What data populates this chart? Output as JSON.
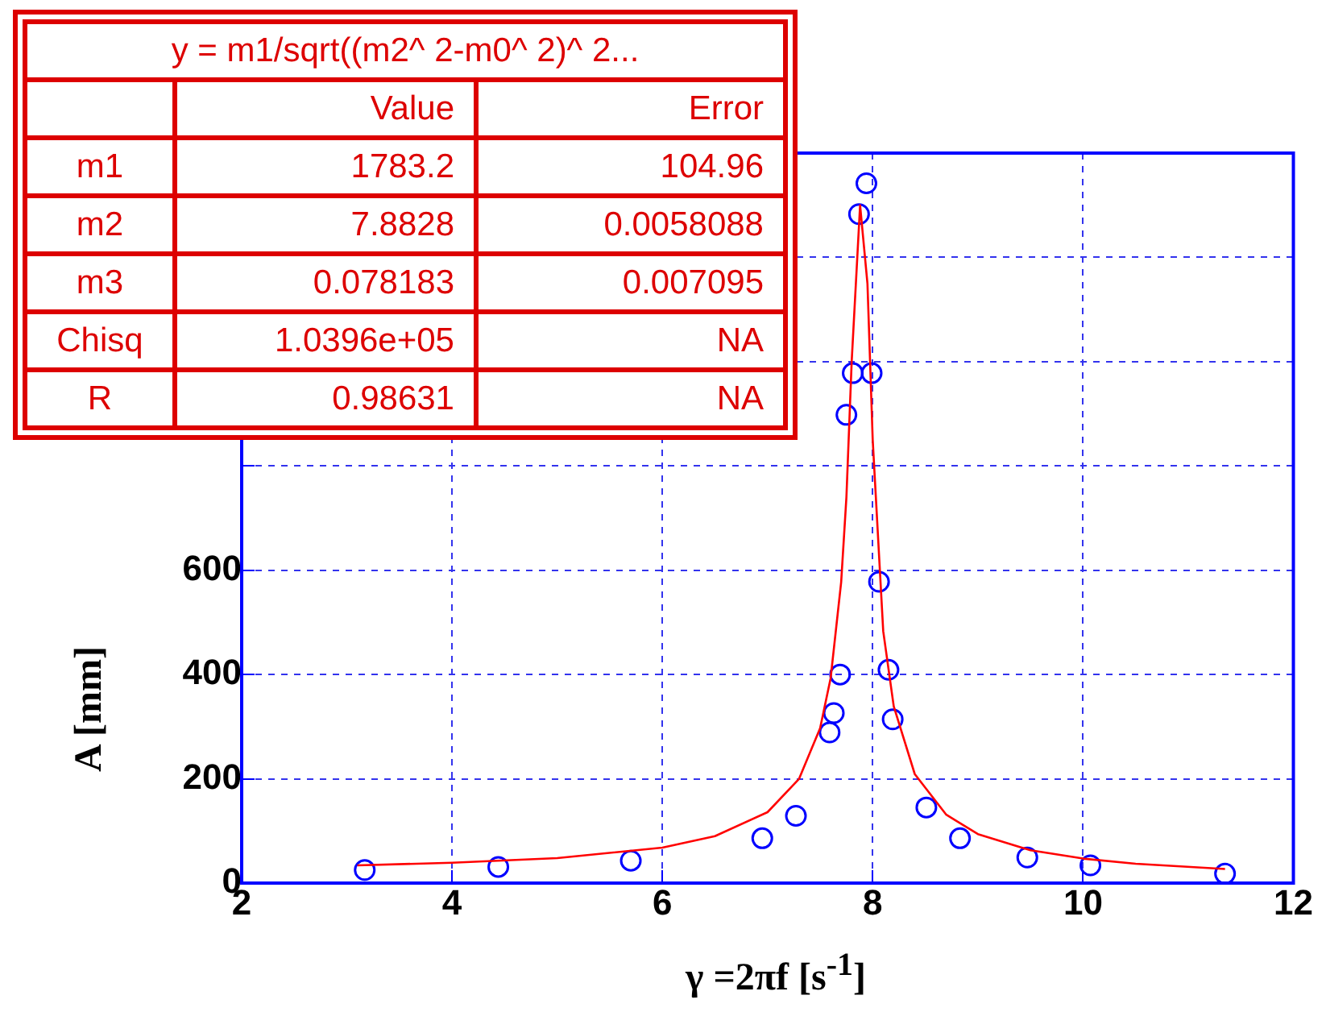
{
  "chart_data": {
    "type": "scatter",
    "xlabel": "γ =2πf [s$^{-1}$]",
    "ylabel": "A  [mm]",
    "xlim": [
      2,
      12
    ],
    "xticks": [
      2,
      4,
      6,
      8,
      10,
      12
    ],
    "ylim": [
      0,
      1400
    ],
    "yticks": [
      0,
      200,
      400,
      600,
      {
        "value": 800,
        "label": null
      },
      {
        "value": 1000,
        "label": null
      },
      {
        "value": 1200,
        "label": null
      },
      {
        "value": 1400,
        "label": null
      }
    ],
    "grid": true,
    "legend": false,
    "marker": "circle",
    "series": [
      {
        "color": "#0000ff",
        "x": [
          3.17,
          4.44,
          5.7,
          6.95,
          7.27,
          7.59,
          7.63,
          7.69,
          7.75,
          7.81,
          7.87,
          7.94,
          7.99,
          8.06,
          8.15,
          8.19,
          8.51,
          8.83,
          9.47,
          10.07,
          11.35
        ],
        "values": [
          25,
          31,
          43,
          86,
          129,
          289,
          326,
          400,
          898,
          978,
          1283,
          1342,
          978,
          578,
          409,
          314,
          145,
          86,
          49,
          34,
          18
        ]
      },
      {
        "type": "line",
        "color": "#ff0000",
        "marker": "none",
        "line_style": "solid",
        "x": [
          3.1,
          4,
          5,
          6,
          6.5,
          7,
          7.3,
          7.5,
          7.6,
          7.7,
          7.75,
          7.8,
          7.88,
          7.95,
          8.0,
          8.1,
          8.2,
          8.4,
          8.7,
          9,
          9.5,
          10,
          10.5,
          11.35
        ],
        "values": [
          34,
          39,
          48,
          68,
          90,
          136,
          200,
          297,
          393,
          577,
          740,
          1000,
          1300,
          1150,
          850,
          483,
          339,
          209,
          131,
          94,
          63,
          47,
          37,
          27
        ]
      }
    ],
    "annotations": [
      "y = m1/sqrt((m2^ 2-m0^ 2)^ 2...",
      "Value",
      "Error",
      "m1",
      "1783.2",
      "104.96",
      "m2",
      "7.8828",
      "0.0058088",
      "m3",
      "0.078183",
      "0.007095",
      "Chisq",
      "1.0396e+05",
      "NA",
      "R",
      "0.98631",
      "NA"
    ]
  }
}
